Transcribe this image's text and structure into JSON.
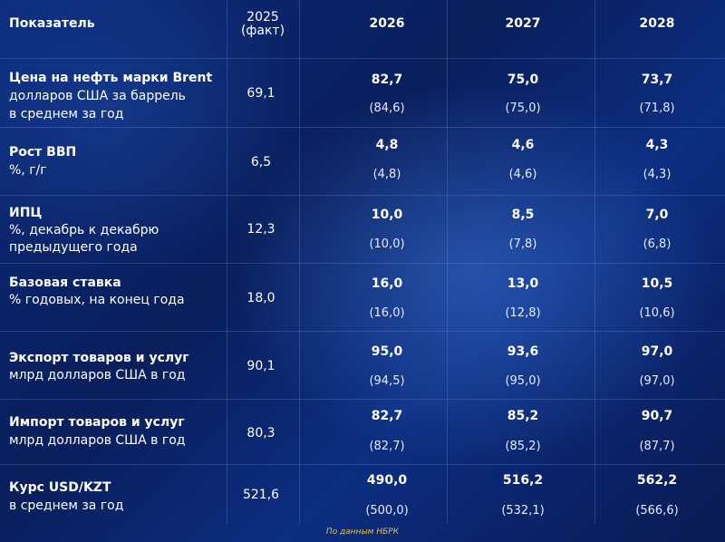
{
  "header": {
    "indicator": "Показатель",
    "fact_year": "2025",
    "fact_note": "(факт)",
    "years": [
      "2026",
      "2027",
      "2028"
    ]
  },
  "rows": [
    {
      "title": "Цена на нефть марки Brent",
      "sub": [
        "долларов США за баррель",
        "в среднем за год"
      ],
      "fact": "69,1",
      "forecast": [
        "82,7",
        "75,0",
        "73,7"
      ],
      "previous": [
        "(84,6)",
        "(75,0)",
        "(71,8)"
      ]
    },
    {
      "title": "Рост ВВП",
      "sub": [
        "%, г/г"
      ],
      "fact": "6,5",
      "forecast": [
        "4,8",
        "4,6",
        "4,3"
      ],
      "previous": [
        "(4,8)",
        "(4,6)",
        "(4,3)"
      ]
    },
    {
      "title": "ИПЦ",
      "sub": [
        "%, декабрь к декабрю",
        "предыдущего года"
      ],
      "fact": "12,3",
      "forecast": [
        "10,0",
        "8,5",
        "7,0"
      ],
      "previous": [
        "(10,0)",
        "(7,8)",
        "(6,8)"
      ]
    },
    {
      "title": "Базовая ставка",
      "sub": [
        "% годовых, на конец года"
      ],
      "fact": "18,0",
      "forecast": [
        "16,0",
        "13,0",
        "10,5"
      ],
      "previous": [
        "(16,0)",
        "(12,8)",
        "(10,6)"
      ]
    },
    {
      "title": "Экспорт товаров и услуг",
      "sub": [
        "млрд долларов США в год"
      ],
      "fact": "90,1",
      "forecast": [
        "95,0",
        "93,6",
        "97,0"
      ],
      "previous": [
        "(94,5)",
        "(95,0)",
        "(97,0)"
      ]
    },
    {
      "title": "Импорт товаров и услуг",
      "sub": [
        "млрд долларов США в год"
      ],
      "fact": "80,3",
      "forecast": [
        "82,7",
        "85,2",
        "90,7"
      ],
      "previous": [
        "(82,7)",
        "(85,2)",
        "(87,7)"
      ]
    },
    {
      "title": "Курс USD/KZT",
      "sub": [
        "в среднем за год"
      ],
      "fact": "521,6",
      "forecast": [
        "490,0",
        "516,2",
        "562,2"
      ],
      "previous": [
        "(500,0)",
        "(532,1)",
        "(566,6)"
      ]
    }
  ],
  "source": "По данным НБРК"
}
